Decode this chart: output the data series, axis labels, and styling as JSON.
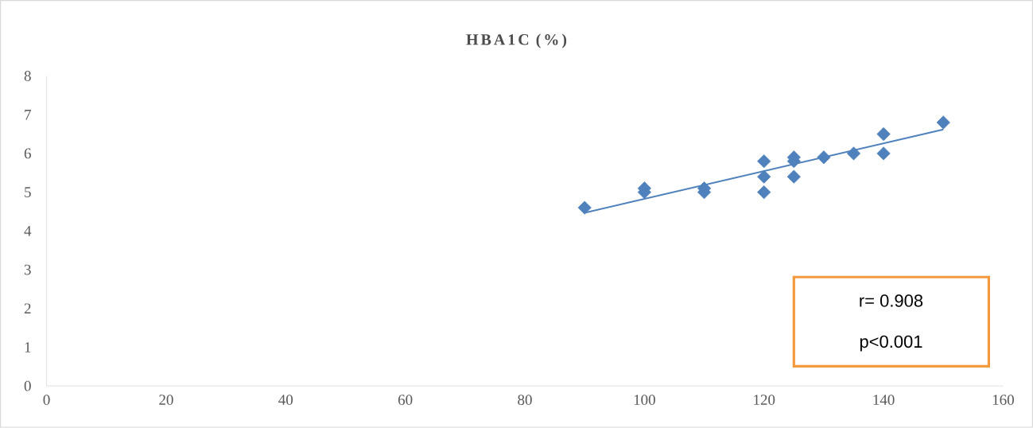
{
  "chart_data": {
    "type": "scatter",
    "title": "HBA1C (%)",
    "marker": "diamond",
    "grid": false,
    "xlim": [
      0,
      160
    ],
    "xticks": [
      0,
      20,
      40,
      60,
      80,
      100,
      120,
      140,
      160
    ],
    "ylim": [
      0,
      8
    ],
    "yticks": [
      0,
      1,
      2,
      3,
      4,
      5,
      6,
      7,
      8
    ],
    "series": [
      {
        "color": "#4f81bd",
        "x": [
          90,
          100,
          100,
          110,
          110,
          120,
          120,
          120,
          125,
          125,
          125,
          130,
          135,
          140,
          140,
          150
        ],
        "values": [
          4.6,
          5.1,
          5.0,
          5.1,
          5.0,
          5.8,
          5.4,
          5.0,
          5.9,
          5.8,
          5.4,
          5.9,
          6.0,
          6.5,
          6.0,
          6.8
        ]
      },
      {
        "type": "line",
        "color": "#4f81bd",
        "marker": "none",
        "x": [
          90,
          150
        ],
        "values": [
          4.47,
          6.62
        ]
      }
    ],
    "annotations": [
      "r= 0.908",
      "p<0.001"
    ]
  }
}
